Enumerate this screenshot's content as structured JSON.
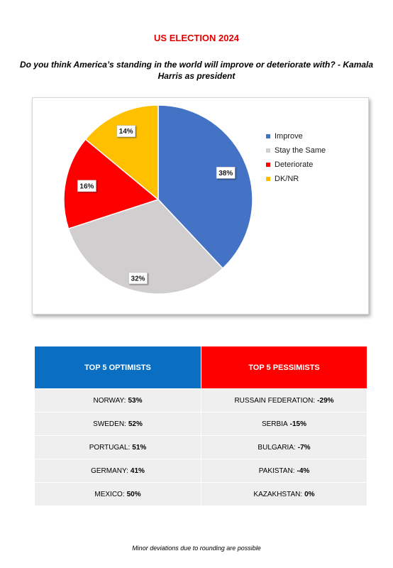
{
  "page": {
    "title": "US ELECTION 2024",
    "question": "Do you think America’s standing in the world will improve or deteriorate with? - Kamala Harris as president",
    "footnote": "Minor deviations due to rounding are possible"
  },
  "chart_data": {
    "type": "pie",
    "title": "",
    "legend_position": "right",
    "slices": [
      {
        "label": "Improve",
        "value": 38,
        "display": "38%",
        "color": "#4472c4"
      },
      {
        "label": "Stay the Same",
        "value": 32,
        "display": "32%",
        "color": "#d0cece"
      },
      {
        "label": "Deteriorate",
        "value": 16,
        "display": "16%",
        "color": "#ff0000"
      },
      {
        "label": "DK/NR",
        "value": 14,
        "display": "14%",
        "color": "#ffc000"
      }
    ]
  },
  "table": {
    "optimists_header": "TOP 5 OPTIMISTS",
    "pessimists_header": "TOP 5 PESSIMISTS",
    "header_colors": {
      "optimists": "#0a6fc2",
      "pessimists": "#ff0000"
    },
    "rows": [
      {
        "opt_country": "NORWAY:",
        "opt_value": "53%",
        "pes_country": "RUSSAIN FEDERATION:",
        "pes_value": "-29%"
      },
      {
        "opt_country": "SWEDEN:",
        "opt_value": "52%",
        "pes_country": "SERBIA",
        "pes_value": "-15%"
      },
      {
        "opt_country": "PORTUGAL:",
        "opt_value": "51%",
        "pes_country": "BULGARIA:",
        "pes_value": "-7%"
      },
      {
        "opt_country": "GERMANY:",
        "opt_value": "41%",
        "pes_country": "PAKISTAN:",
        "pes_value": "-4%"
      },
      {
        "opt_country": "MEXICO:",
        "opt_value": "50%",
        "pes_country": "KAZAKHSTAN:",
        "pes_value": "0%"
      }
    ]
  }
}
